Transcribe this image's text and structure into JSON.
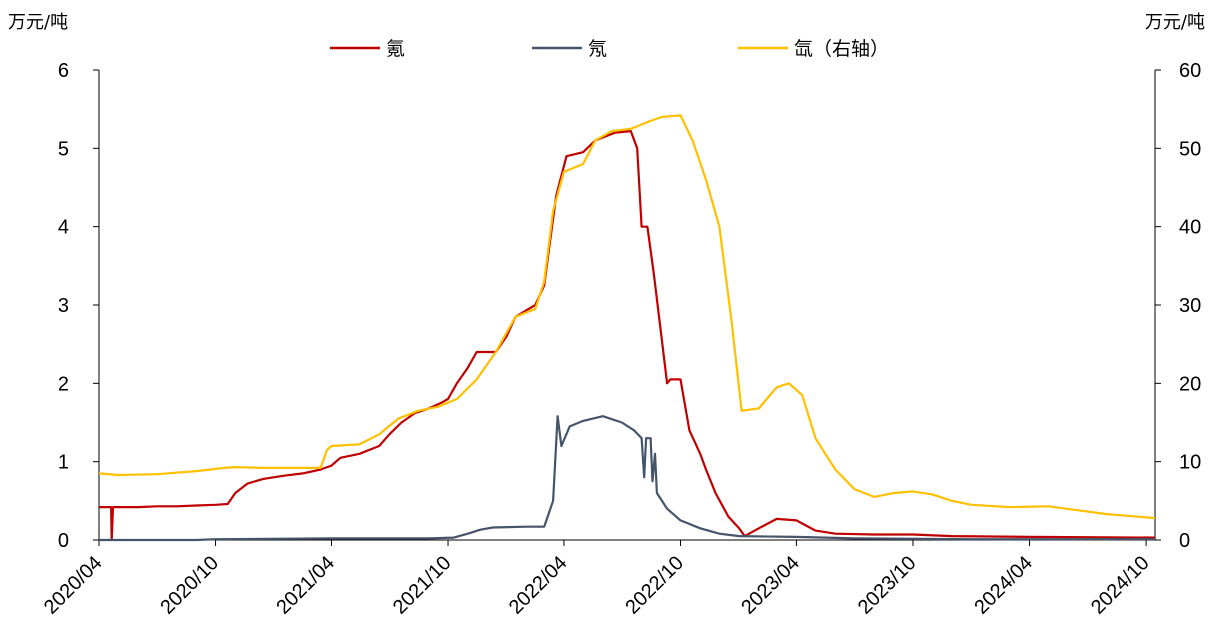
{
  "chart_data": {
    "type": "line",
    "title": "",
    "ylabel_left": "万元/吨",
    "ylabel_right": "万元/吨",
    "ylim_left": [
      0,
      6
    ],
    "ylim_right": [
      0,
      60
    ],
    "yticks_left": [
      "0",
      "1",
      "2",
      "3",
      "4",
      "5",
      "6"
    ],
    "yticks_right": [
      "0",
      "10",
      "20",
      "30",
      "40",
      "50",
      "60"
    ],
    "x_range": [
      "2020-04",
      "2024-10"
    ],
    "xticks": [
      "2020/04",
      "2020/10",
      "2021/04",
      "2021/10",
      "2022/04",
      "2022/10",
      "2023/04",
      "2023/10",
      "2024/04",
      "2024/10"
    ],
    "grid": false,
    "legend_position": "top",
    "series": [
      {
        "name": "氪",
        "color": "#C00000",
        "axis": "left",
        "points": [
          [
            "2020-04-01",
            0.42
          ],
          [
            "2020-04-20",
            0.42
          ],
          [
            "2020-04-21",
            0.0
          ],
          [
            "2020-04-23",
            0.42
          ],
          [
            "2020-06-01",
            0.42
          ],
          [
            "2020-07-01",
            0.43
          ],
          [
            "2020-08-01",
            0.43
          ],
          [
            "2020-09-01",
            0.44
          ],
          [
            "2020-10-01",
            0.45
          ],
          [
            "2020-10-20",
            0.46
          ],
          [
            "2020-11-01",
            0.6
          ],
          [
            "2020-11-20",
            0.72
          ],
          [
            "2020-12-15",
            0.78
          ],
          [
            "2021-01-15",
            0.82
          ],
          [
            "2021-02-15",
            0.85
          ],
          [
            "2021-03-15",
            0.9
          ],
          [
            "2021-04-01",
            0.95
          ],
          [
            "2021-04-15",
            1.05
          ],
          [
            "2021-05-15",
            1.1
          ],
          [
            "2021-06-15",
            1.2
          ],
          [
            "2021-07-01",
            1.35
          ],
          [
            "2021-07-20",
            1.5
          ],
          [
            "2021-08-10",
            1.62
          ],
          [
            "2021-09-01",
            1.68
          ],
          [
            "2021-09-20",
            1.75
          ],
          [
            "2021-10-01",
            1.8
          ],
          [
            "2021-10-15",
            2.0
          ],
          [
            "2021-11-01",
            2.2
          ],
          [
            "2021-11-15",
            2.4
          ],
          [
            "2021-12-15",
            2.4
          ],
          [
            "2022-01-01",
            2.6
          ],
          [
            "2022-01-15",
            2.85
          ],
          [
            "2022-02-15",
            3.0
          ],
          [
            "2022-03-01",
            3.25
          ],
          [
            "2022-03-10",
            3.8
          ],
          [
            "2022-03-20",
            4.4
          ],
          [
            "2022-04-05",
            4.9
          ],
          [
            "2022-05-01",
            4.95
          ],
          [
            "2022-05-20",
            5.1
          ],
          [
            "2022-06-20",
            5.2
          ],
          [
            "2022-07-15",
            5.22
          ],
          [
            "2022-07-25",
            5.0
          ],
          [
            "2022-08-01",
            4.0
          ],
          [
            "2022-08-10",
            4.0
          ],
          [
            "2022-08-20",
            3.4
          ],
          [
            "2022-09-01",
            2.6
          ],
          [
            "2022-09-10",
            2.0
          ],
          [
            "2022-09-15",
            2.05
          ],
          [
            "2022-10-01",
            2.05
          ],
          [
            "2022-10-15",
            1.4
          ],
          [
            "2022-11-01",
            1.1
          ],
          [
            "2022-11-10",
            0.9
          ],
          [
            "2022-11-25",
            0.6
          ],
          [
            "2022-12-15",
            0.3
          ],
          [
            "2023-01-01",
            0.15
          ],
          [
            "2023-01-10",
            0.05
          ],
          [
            "2023-02-01",
            0.15
          ],
          [
            "2023-03-01",
            0.27
          ],
          [
            "2023-04-01",
            0.25
          ],
          [
            "2023-05-01",
            0.12
          ],
          [
            "2023-06-01",
            0.08
          ],
          [
            "2023-08-01",
            0.07
          ],
          [
            "2023-10-01",
            0.07
          ],
          [
            "2023-12-01",
            0.05
          ],
          [
            "2024-04-01",
            0.04
          ],
          [
            "2024-10-15",
            0.03
          ]
        ]
      },
      {
        "name": "氖",
        "color": "#44546A",
        "axis": "left",
        "points": [
          [
            "2020-04-01",
            0.0
          ],
          [
            "2020-09-01",
            0.0
          ],
          [
            "2020-10-01",
            0.01
          ],
          [
            "2021-04-01",
            0.02
          ],
          [
            "2021-09-01",
            0.02
          ],
          [
            "2021-10-10",
            0.03
          ],
          [
            "2021-11-01",
            0.08
          ],
          [
            "2021-11-20",
            0.13
          ],
          [
            "2021-12-10",
            0.16
          ],
          [
            "2022-02-01",
            0.17
          ],
          [
            "2022-03-01",
            0.17
          ],
          [
            "2022-03-15",
            0.5
          ],
          [
            "2022-03-22",
            1.58
          ],
          [
            "2022-03-28",
            1.2
          ],
          [
            "2022-04-10",
            1.45
          ],
          [
            "2022-05-01",
            1.52
          ],
          [
            "2022-06-01",
            1.58
          ],
          [
            "2022-07-01",
            1.5
          ],
          [
            "2022-07-20",
            1.4
          ],
          [
            "2022-08-01",
            1.3
          ],
          [
            "2022-08-05",
            0.8
          ],
          [
            "2022-08-08",
            1.3
          ],
          [
            "2022-08-15",
            1.3
          ],
          [
            "2022-08-18",
            0.75
          ],
          [
            "2022-08-22",
            1.1
          ],
          [
            "2022-08-25",
            0.6
          ],
          [
            "2022-09-10",
            0.4
          ],
          [
            "2022-10-01",
            0.25
          ],
          [
            "2022-11-01",
            0.15
          ],
          [
            "2022-12-01",
            0.08
          ],
          [
            "2023-01-01",
            0.05
          ],
          [
            "2023-04-01",
            0.04
          ],
          [
            "2023-07-01",
            0.02
          ],
          [
            "2024-01-01",
            0.01
          ],
          [
            "2024-10-15",
            0.01
          ]
        ]
      },
      {
        "name": "氙（右轴）",
        "color": "#FFC000",
        "axis": "right",
        "points": [
          [
            "2020-04-01",
            8.5
          ],
          [
            "2020-05-01",
            8.3
          ],
          [
            "2020-07-01",
            8.4
          ],
          [
            "2020-09-01",
            8.8
          ],
          [
            "2020-10-15",
            9.2
          ],
          [
            "2020-11-01",
            9.3
          ],
          [
            "2020-12-15",
            9.2
          ],
          [
            "2021-02-01",
            9.2
          ],
          [
            "2021-03-15",
            9.2
          ],
          [
            "2021-03-25",
            11.5
          ],
          [
            "2021-04-01",
            12.0
          ],
          [
            "2021-05-15",
            12.2
          ],
          [
            "2021-06-15",
            13.5
          ],
          [
            "2021-07-15",
            15.5
          ],
          [
            "2021-08-15",
            16.5
          ],
          [
            "2021-09-15",
            17.0
          ],
          [
            "2021-10-15",
            18.0
          ],
          [
            "2021-11-15",
            20.5
          ],
          [
            "2021-12-15",
            24.0
          ],
          [
            "2022-01-15",
            28.5
          ],
          [
            "2022-02-15",
            29.5
          ],
          [
            "2022-03-01",
            33.0
          ],
          [
            "2022-03-15",
            42.0
          ],
          [
            "2022-04-01",
            47.0
          ],
          [
            "2022-05-01",
            48.0
          ],
          [
            "2022-05-20",
            51.0
          ],
          [
            "2022-06-15",
            52.2
          ],
          [
            "2022-07-15",
            52.5
          ],
          [
            "2022-08-15",
            53.5
          ],
          [
            "2022-09-01",
            54.0
          ],
          [
            "2022-10-01",
            54.2
          ],
          [
            "2022-10-20",
            51.0
          ],
          [
            "2022-11-10",
            46.0
          ],
          [
            "2022-12-01",
            40.0
          ],
          [
            "2022-12-20",
            28.0
          ],
          [
            "2023-01-05",
            16.5
          ],
          [
            "2023-02-01",
            16.8
          ],
          [
            "2023-03-01",
            19.5
          ],
          [
            "2023-03-20",
            20.0
          ],
          [
            "2023-04-10",
            18.5
          ],
          [
            "2023-05-01",
            13.0
          ],
          [
            "2023-06-01",
            9.0
          ],
          [
            "2023-07-01",
            6.5
          ],
          [
            "2023-08-01",
            5.5
          ],
          [
            "2023-09-01",
            6.0
          ],
          [
            "2023-10-01",
            6.2
          ],
          [
            "2023-11-01",
            5.8
          ],
          [
            "2023-12-01",
            5.0
          ],
          [
            "2024-01-01",
            4.5
          ],
          [
            "2024-03-01",
            4.2
          ],
          [
            "2024-05-01",
            4.3
          ],
          [
            "2024-06-15",
            3.8
          ],
          [
            "2024-08-01",
            3.3
          ],
          [
            "2024-10-15",
            2.8
          ]
        ]
      }
    ]
  }
}
